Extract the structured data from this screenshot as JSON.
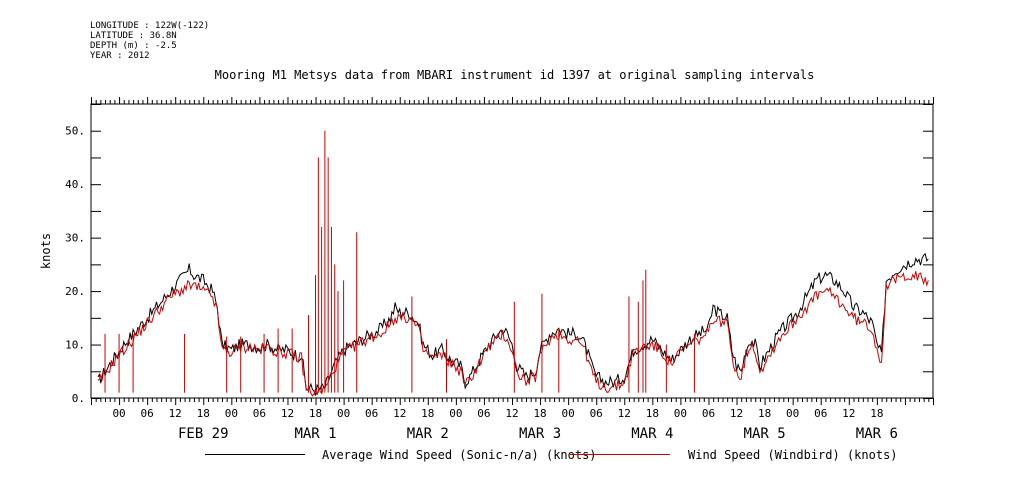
{
  "header": {
    "longitude": "LONGITUDE : 122W(-122)",
    "latitude": "LATITUDE : 36.8N",
    "depth": "DEPTH (m) : -2.5",
    "year": "YEAR : 2012",
    "title": "Mooring M1 Metsys data from MBARI instrument id 1397 at original sampling intervals"
  },
  "chart_data": {
    "type": "line",
    "ylabel": "knots",
    "ylim": [
      0,
      55
    ],
    "yticks": [
      0,
      10,
      20,
      30,
      40,
      50
    ],
    "ytick_labels": [
      "0.",
      "10.",
      "20.",
      "30.",
      "40.",
      "50."
    ],
    "x_range_hours": [
      -18,
      162
    ],
    "x_hour_labels": [
      "00",
      "06",
      "12",
      "18",
      "00",
      "06",
      "12",
      "18",
      "00",
      "06",
      "12",
      "18",
      "00",
      "06",
      "12",
      "18",
      "00",
      "06",
      "12",
      "18",
      "00",
      "06",
      "12",
      "18",
      "00",
      "06",
      "12",
      "18"
    ],
    "day_labels": [
      "FEB 29",
      "MAR  1",
      "MAR  2",
      "MAR  3",
      "MAR  4",
      "MAR  5",
      "MAR  6"
    ],
    "series": [
      {
        "name": "Average Wind Speed (Sonic-n/a) (knots)",
        "color": "#000000",
        "points": [
          [
            -16.5,
            3
          ],
          [
            -15,
            5
          ],
          [
            -13,
            7.5
          ],
          [
            -11,
            10
          ],
          [
            -9,
            12
          ],
          [
            -7,
            14
          ],
          [
            -5,
            16
          ],
          [
            -3,
            18
          ],
          [
            -1,
            20
          ],
          [
            1,
            22
          ],
          [
            3,
            24
          ],
          [
            4,
            23
          ],
          [
            6,
            22
          ],
          [
            8,
            20
          ],
          [
            9,
            17
          ],
          [
            10,
            10
          ],
          [
            12,
            9
          ],
          [
            14,
            10
          ],
          [
            16,
            10
          ],
          [
            18,
            9.5
          ],
          [
            20,
            10
          ],
          [
            22,
            9
          ],
          [
            24,
            9
          ],
          [
            26,
            8
          ],
          [
            27,
            8
          ],
          [
            28,
            2
          ],
          [
            30,
            1.5
          ],
          [
            32,
            2
          ],
          [
            34,
            6
          ],
          [
            36,
            9
          ],
          [
            38,
            10
          ],
          [
            40,
            11
          ],
          [
            42,
            12
          ],
          [
            44,
            13
          ],
          [
            46,
            15
          ],
          [
            47,
            17
          ],
          [
            48,
            16
          ],
          [
            50,
            16
          ],
          [
            52,
            14
          ],
          [
            53,
            10
          ],
          [
            55,
            8
          ],
          [
            57,
            9
          ],
          [
            59,
            7
          ],
          [
            61,
            6
          ],
          [
            62,
            3
          ],
          [
            63,
            4
          ],
          [
            65,
            7
          ],
          [
            67,
            10
          ],
          [
            69,
            12
          ],
          [
            70,
            13
          ],
          [
            71,
            12
          ],
          [
            72,
            10
          ],
          [
            73,
            6
          ],
          [
            75,
            4
          ],
          [
            77,
            5
          ],
          [
            78,
            9
          ],
          [
            80,
            12
          ],
          [
            82,
            13
          ],
          [
            84,
            12
          ],
          [
            86,
            12
          ],
          [
            87,
            11
          ],
          [
            88,
            9
          ],
          [
            89,
            6
          ],
          [
            90,
            4
          ],
          [
            92,
            3
          ],
          [
            94,
            3
          ],
          [
            96,
            4
          ],
          [
            98,
            9
          ],
          [
            100,
            10
          ],
          [
            102,
            11
          ],
          [
            104,
            9
          ],
          [
            106,
            7
          ],
          [
            108,
            9
          ],
          [
            110,
            11
          ],
          [
            112,
            12
          ],
          [
            114,
            13
          ],
          [
            115,
            17
          ],
          [
            116,
            16
          ],
          [
            118,
            15
          ],
          [
            119,
            9
          ],
          [
            120,
            6
          ],
          [
            121,
            5
          ],
          [
            122,
            9
          ],
          [
            123,
            11
          ],
          [
            124,
            10
          ],
          [
            125,
            6
          ],
          [
            127,
            9
          ],
          [
            129,
            12
          ],
          [
            131,
            14
          ],
          [
            133,
            16
          ],
          [
            135,
            19
          ],
          [
            137,
            22
          ],
          [
            139,
            23
          ],
          [
            141,
            22
          ],
          [
            143,
            20
          ],
          [
            145,
            17
          ],
          [
            147,
            16
          ],
          [
            149,
            14
          ],
          [
            150,
            10
          ],
          [
            151,
            8
          ],
          [
            152,
            22
          ],
          [
            154,
            24
          ],
          [
            156,
            25
          ],
          [
            158,
            26
          ],
          [
            160,
            26
          ],
          [
            161,
            26
          ]
        ]
      },
      {
        "name": "Wind Speed (Windbird) (knots)",
        "color": "#cc0000",
        "points": [
          [
            -16.5,
            2.5
          ],
          [
            -15,
            4.5
          ],
          [
            -13,
            7
          ],
          [
            -11,
            9
          ],
          [
            -9,
            11
          ],
          [
            -7,
            13
          ],
          [
            -5,
            15
          ],
          [
            -3,
            17
          ],
          [
            -1,
            19
          ],
          [
            1,
            20
          ],
          [
            3,
            21
          ],
          [
            4,
            21
          ],
          [
            6,
            20
          ],
          [
            8,
            19
          ],
          [
            9,
            16
          ],
          [
            10,
            9
          ],
          [
            12,
            8.5
          ],
          [
            14,
            9.5
          ],
          [
            16,
            9.5
          ],
          [
            18,
            9
          ],
          [
            20,
            9.5
          ],
          [
            22,
            8.5
          ],
          [
            24,
            8.5
          ],
          [
            26,
            7.5
          ],
          [
            27,
            7.5
          ],
          [
            28,
            1.5
          ],
          [
            30,
            1
          ],
          [
            32,
            1.5
          ],
          [
            34,
            5.5
          ],
          [
            36,
            8.5
          ],
          [
            38,
            9.5
          ],
          [
            40,
            10.5
          ],
          [
            42,
            11.5
          ],
          [
            44,
            12
          ],
          [
            46,
            14
          ],
          [
            47,
            15
          ],
          [
            48,
            15
          ],
          [
            50,
            15
          ],
          [
            52,
            13
          ],
          [
            53,
            9
          ],
          [
            55,
            7.5
          ],
          [
            57,
            8
          ],
          [
            59,
            6.5
          ],
          [
            61,
            5
          ],
          [
            62,
            2.5
          ],
          [
            63,
            3.5
          ],
          [
            65,
            6.5
          ],
          [
            67,
            9.5
          ],
          [
            69,
            11
          ],
          [
            70,
            12
          ],
          [
            71,
            11
          ],
          [
            72,
            9
          ],
          [
            73,
            5
          ],
          [
            75,
            3
          ],
          [
            77,
            4
          ],
          [
            78,
            8
          ],
          [
            80,
            11
          ],
          [
            82,
            12
          ],
          [
            84,
            11
          ],
          [
            86,
            11
          ],
          [
            87,
            10
          ],
          [
            88,
            8
          ],
          [
            89,
            5
          ],
          [
            90,
            3
          ],
          [
            92,
            2
          ],
          [
            94,
            2
          ],
          [
            96,
            3
          ],
          [
            98,
            8.5
          ],
          [
            100,
            9.5
          ],
          [
            102,
            10
          ],
          [
            104,
            8.5
          ],
          [
            106,
            6.5
          ],
          [
            108,
            8.5
          ],
          [
            110,
            10
          ],
          [
            112,
            11
          ],
          [
            114,
            12
          ],
          [
            115,
            15
          ],
          [
            116,
            14.5
          ],
          [
            118,
            14
          ],
          [
            119,
            8
          ],
          [
            120,
            5
          ],
          [
            121,
            4
          ],
          [
            122,
            8
          ],
          [
            123,
            10
          ],
          [
            124,
            9
          ],
          [
            125,
            5
          ],
          [
            127,
            8
          ],
          [
            129,
            11
          ],
          [
            131,
            13
          ],
          [
            133,
            15
          ],
          [
            135,
            17
          ],
          [
            137,
            19
          ],
          [
            139,
            20
          ],
          [
            141,
            19
          ],
          [
            143,
            17
          ],
          [
            145,
            15
          ],
          [
            147,
            14
          ],
          [
            149,
            13
          ],
          [
            150,
            9
          ],
          [
            151,
            7
          ],
          [
            152,
            21
          ],
          [
            154,
            22
          ],
          [
            156,
            23
          ],
          [
            158,
            23
          ],
          [
            160,
            22
          ],
          [
            161,
            22
          ]
        ],
        "spikes": [
          [
            -15,
            12
          ],
          [
            -12,
            12
          ],
          [
            -9,
            12
          ],
          [
            2,
            12
          ],
          [
            11,
            11.5
          ],
          [
            14,
            11.5
          ],
          [
            19,
            12
          ],
          [
            22,
            13
          ],
          [
            25,
            13
          ],
          [
            28.5,
            15.5
          ],
          [
            30,
            23
          ],
          [
            30.6,
            45
          ],
          [
            31.3,
            32
          ],
          [
            32,
            50
          ],
          [
            32.7,
            45
          ],
          [
            33.4,
            32
          ],
          [
            34.1,
            25
          ],
          [
            34.8,
            20
          ],
          [
            36,
            22
          ],
          [
            38.8,
            31
          ],
          [
            50.6,
            19
          ],
          [
            58,
            11
          ],
          [
            72.5,
            18
          ],
          [
            78.4,
            19.5
          ],
          [
            82,
            13
          ],
          [
            97,
            19
          ],
          [
            99,
            18
          ],
          [
            100,
            22
          ],
          [
            100.6,
            24
          ],
          [
            105,
            10
          ],
          [
            111,
            12
          ]
        ]
      }
    ]
  },
  "legend": {
    "entries": [
      {
        "label": "Average Wind Speed (Sonic-n/a) (knots)",
        "color": "#000000"
      },
      {
        "label": "Wind Speed (Windbird) (knots)",
        "color": "#cc0000"
      }
    ]
  }
}
